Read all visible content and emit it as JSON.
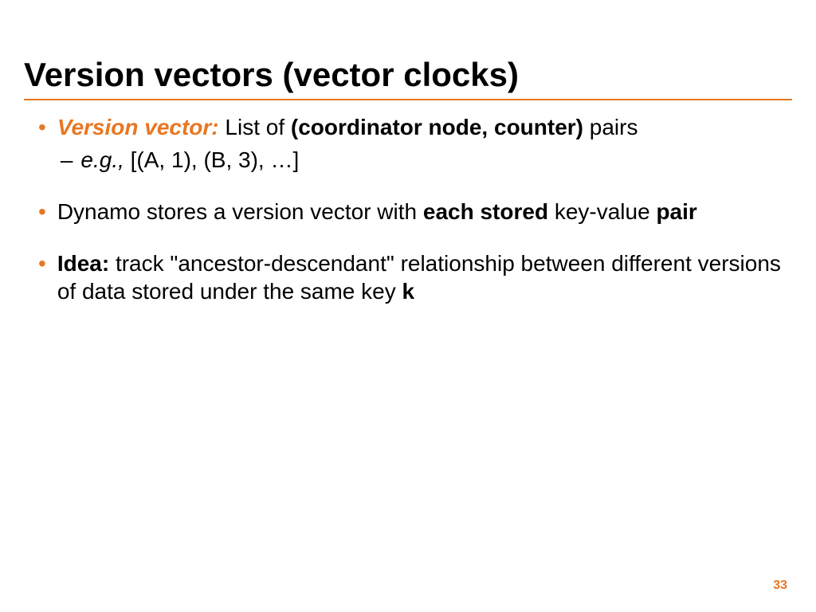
{
  "title": "Version vectors (vector clocks)",
  "colors": {
    "accent": "#e87722",
    "text": "#000000",
    "background": "#ffffff"
  },
  "bullets": [
    {
      "parts": {
        "label": "Version vector: ",
        "pre": "List of ",
        "bold": "(coordinator node, counter) ",
        "post": "pairs"
      },
      "sub": {
        "label": "e.g., ",
        "text": "[(A, 1), (B, 3), …]"
      }
    },
    {
      "parts": {
        "pre": "Dynamo stores a version vector with ",
        "bold1": "each stored ",
        "mid": "key-value ",
        "bold2": "pair"
      }
    },
    {
      "parts": {
        "bold1": "Idea: ",
        "mid": "track \"ancestor-descendant\" relationship between different versions of data stored under the same key ",
        "bold2": "k"
      }
    }
  ],
  "page_number": "33"
}
